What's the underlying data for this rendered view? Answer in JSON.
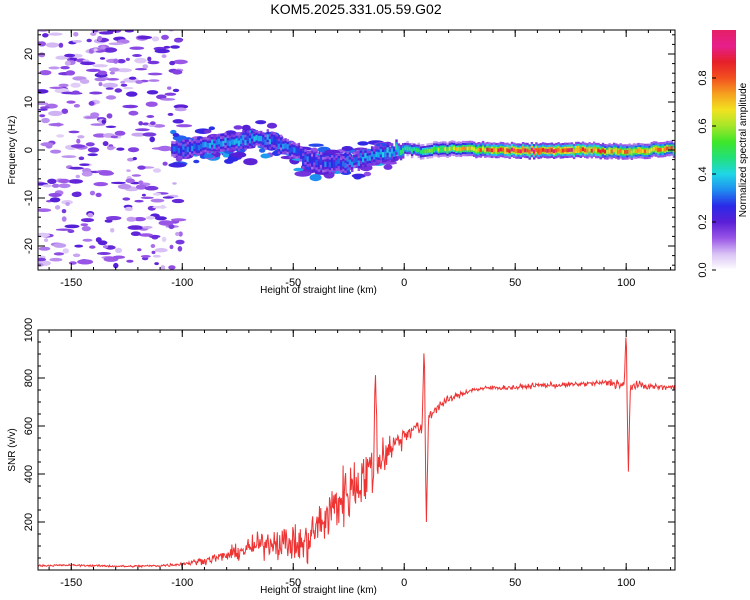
{
  "title": "KOM5.2025.331.05.59.G02",
  "colors": {
    "snr_line": "#ee3333",
    "frame": "#000000"
  },
  "chart_data": [
    {
      "type": "heatmap",
      "title": "KOM5.2025.331.05.59.G02",
      "xlabel": "Height of straight line (km)",
      "ylabel": "Frequency (Hz)",
      "xlim": [
        -165,
        122
      ],
      "ylim": [
        -25,
        25
      ],
      "xticks": [
        -150,
        -100,
        -50,
        0,
        50,
        100
      ],
      "yticks": [
        -20,
        -10,
        0,
        10,
        20
      ],
      "colorbar": {
        "label": "Normalized spectral amplitude",
        "range": [
          0,
          1
        ],
        "ticks": [
          "0.0",
          "0.2",
          "0.4",
          "0.6",
          "0.8"
        ],
        "tick_values": [
          0,
          0.2,
          0.4,
          0.6,
          0.8
        ],
        "colormap": [
          "#ffffff",
          "#d9c2f5",
          "#9955e6",
          "#5a1fd6",
          "#2a2ae8",
          "#1f8cf0",
          "#1fd6e6",
          "#22e07a",
          "#3ee62a",
          "#a5e62a",
          "#f2e21f",
          "#f5a11f",
          "#f2501f",
          "#e61f2a",
          "#e61f8c",
          "#e61f66"
        ]
      },
      "noise_region": {
        "x_range": [
          -165,
          -100
        ],
        "y_range": [
          -25,
          25
        ],
        "level": 0.1
      },
      "ridge_centerline": [
        {
          "x": -105,
          "freq": 0.0
        },
        {
          "x": -95,
          "freq": 0.6
        },
        {
          "x": -85,
          "freq": 1.2
        },
        {
          "x": -75,
          "freq": 1.8
        },
        {
          "x": -65,
          "freq": 2.5
        },
        {
          "x": -55,
          "freq": 1.0
        },
        {
          "x": -45,
          "freq": -1.5
        },
        {
          "x": -35,
          "freq": -3.0
        },
        {
          "x": -25,
          "freq": -2.5
        },
        {
          "x": -15,
          "freq": -1.2
        },
        {
          "x": -5,
          "freq": -0.5
        },
        {
          "x": 0,
          "freq": 0.3
        },
        {
          "x": 8,
          "freq": -0.3
        },
        {
          "x": 20,
          "freq": 0.3
        },
        {
          "x": 40,
          "freq": 0.0
        },
        {
          "x": 60,
          "freq": -0.2
        },
        {
          "x": 80,
          "freq": 0.0
        },
        {
          "x": 100,
          "freq": -0.4
        },
        {
          "x": 122,
          "freq": 0.3
        }
      ],
      "ridge_amplitude": [
        {
          "x": -100,
          "amp": 0.3
        },
        {
          "x": -75,
          "amp": 0.35
        },
        {
          "x": -50,
          "amp": 0.3
        },
        {
          "x": -25,
          "amp": 0.3
        },
        {
          "x": -5,
          "amp": 0.4
        },
        {
          "x": 5,
          "amp": 0.45
        },
        {
          "x": 20,
          "amp": 0.6
        },
        {
          "x": 40,
          "amp": 0.8
        },
        {
          "x": 60,
          "amp": 0.9
        },
        {
          "x": 80,
          "amp": 0.82
        },
        {
          "x": 100,
          "amp": 0.7
        },
        {
          "x": 122,
          "amp": 0.75
        }
      ]
    },
    {
      "type": "line",
      "xlabel": "Height of straight line (km)",
      "ylabel": "SNR (v/v)",
      "xlim": [
        -165,
        122
      ],
      "ylim": [
        0,
        1000
      ],
      "xticks": [
        -150,
        -100,
        -50,
        0,
        50,
        100
      ],
      "yticks": [
        200,
        400,
        600,
        800,
        1000
      ],
      "series": [
        {
          "name": "SNR",
          "x": [
            -165,
            -150,
            -125,
            -110,
            -100,
            -90,
            -80,
            -70,
            -60,
            -50,
            -45,
            -40,
            -35,
            -30,
            -25,
            -20,
            -15,
            -10,
            -5,
            0,
            5,
            8,
            12,
            15,
            20,
            25,
            30,
            40,
            50,
            60,
            70,
            80,
            90,
            95,
            100,
            105,
            110,
            122
          ],
          "values": [
            18,
            20,
            15,
            18,
            25,
            40,
            60,
            90,
            120,
            110,
            100,
            170,
            220,
            280,
            330,
            380,
            410,
            480,
            520,
            560,
            600,
            580,
            650,
            680,
            710,
            730,
            750,
            760,
            760,
            770,
            770,
            775,
            780,
            780,
            765,
            770,
            765,
            760
          ],
          "noise_envelope": [
            4,
            4,
            4,
            5,
            8,
            15,
            25,
            40,
            60,
            75,
            90,
            100,
            110,
            120,
            125,
            130,
            120,
            100,
            60,
            40,
            30,
            30,
            25,
            20,
            15,
            12,
            10,
            10,
            10,
            10,
            10,
            10,
            12,
            25,
            30,
            15,
            12,
            12
          ],
          "spikes": [
            {
              "x": -13,
              "value": 830
            },
            {
              "x": 9,
              "value": 950
            },
            {
              "x": 10,
              "value": 200
            },
            {
              "x": 100,
              "value": 1000
            },
            {
              "x": 101,
              "value": 410
            }
          ]
        }
      ]
    }
  ]
}
